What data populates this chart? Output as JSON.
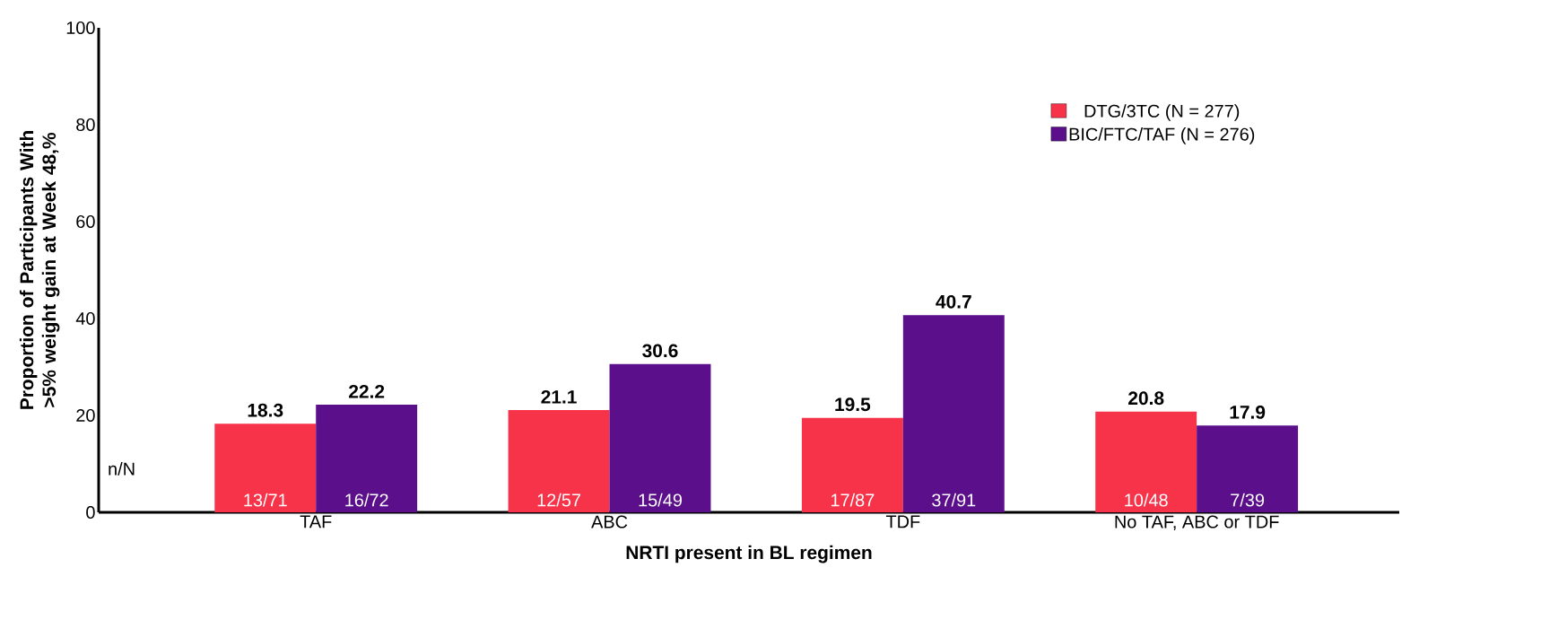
{
  "chart_data": {
    "type": "bar",
    "categories": [
      "TAF",
      "ABC",
      "TDF",
      "No TAF, ABC or TDF"
    ],
    "series": [
      {
        "name": "DTG/3TC (N = 277)",
        "color": "#f7334a",
        "values": [
          18.3,
          21.1,
          19.5,
          20.8
        ]
      },
      {
        "name": "BIC/FTC/TAF (N = 276)",
        "color": "#5b0f8b",
        "values": [
          22.2,
          30.6,
          40.7,
          17.9
        ]
      }
    ],
    "xlabel": "NRTI present in BL regimen",
    "ylabel": "Proportion of Participants With >5% weight gain at Week 48,%",
    "ylim": [
      0,
      100
    ],
    "yticks": [
      0,
      20,
      40,
      60,
      80,
      100
    ],
    "data_labels": true,
    "legend": "top right",
    "grid": false,
    "annotations": [
      "n/N",
      "13/71",
      "16/72",
      "12/57",
      "15/49",
      "17/87",
      "37/91",
      "10/48",
      "7/39"
    ]
  }
}
